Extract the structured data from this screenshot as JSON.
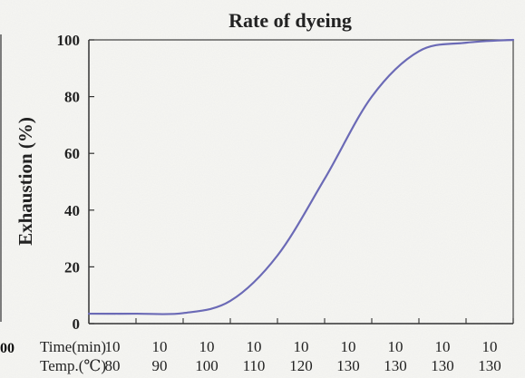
{
  "chart_data": {
    "type": "line",
    "title": "Rate of dyeing",
    "ylabel": "Exhaustion (%)",
    "xlabel": "",
    "ylim": [
      0,
      100
    ],
    "y_ticks": [
      "0",
      "20",
      "40",
      "60",
      "80",
      "100"
    ],
    "x_row_labels": [
      "Time(min)",
      "Temp.(℃)"
    ],
    "x_groups": [
      {
        "time": "10",
        "temp": "80"
      },
      {
        "time": "10",
        "temp": "90"
      },
      {
        "time": "10",
        "temp": "100"
      },
      {
        "time": "10",
        "temp": "110"
      },
      {
        "time": "10",
        "temp": "120"
      },
      {
        "time": "10",
        "temp": "130"
      },
      {
        "time": "10",
        "temp": "130"
      },
      {
        "time": "10",
        "temp": "130"
      },
      {
        "time": "10",
        "temp": "130"
      }
    ],
    "x": [
      0,
      10,
      20,
      30,
      40,
      50,
      60,
      70,
      80,
      90
    ],
    "series": [
      {
        "values": [
          3.5,
          3.5,
          3.7,
          8,
          24,
          51,
          80,
          96,
          99,
          100
        ],
        "color": "#6b6ab6"
      }
    ],
    "grid": false,
    "left_cropped_tick": "00"
  }
}
